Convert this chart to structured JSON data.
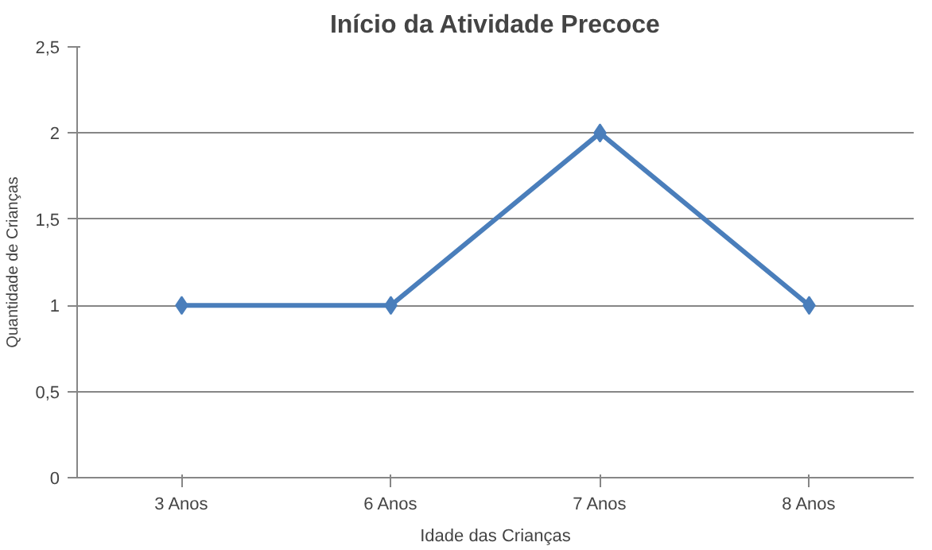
{
  "chart_data": {
    "type": "line",
    "title": "Início da Atividade Precoce",
    "xlabel": "Idade das Crianças",
    "ylabel": "Quantidade de Crianças",
    "categories": [
      "3 Anos",
      "6 Anos",
      "7 Anos",
      "8 Anos"
    ],
    "series": [
      {
        "color": "#4a7ebb",
        "values": [
          1,
          1,
          2,
          1
        ]
      }
    ],
    "ylim": [
      0,
      2.5
    ],
    "yticks": [
      0,
      {
        "value": 0.5,
        "label": "0,5"
      },
      1,
      {
        "value": 1.5,
        "label": "1,5"
      },
      2,
      {
        "value": 2.5,
        "label": "2,5"
      }
    ],
    "grid": "y",
    "marker": "diamond",
    "line_style": "solid"
  }
}
